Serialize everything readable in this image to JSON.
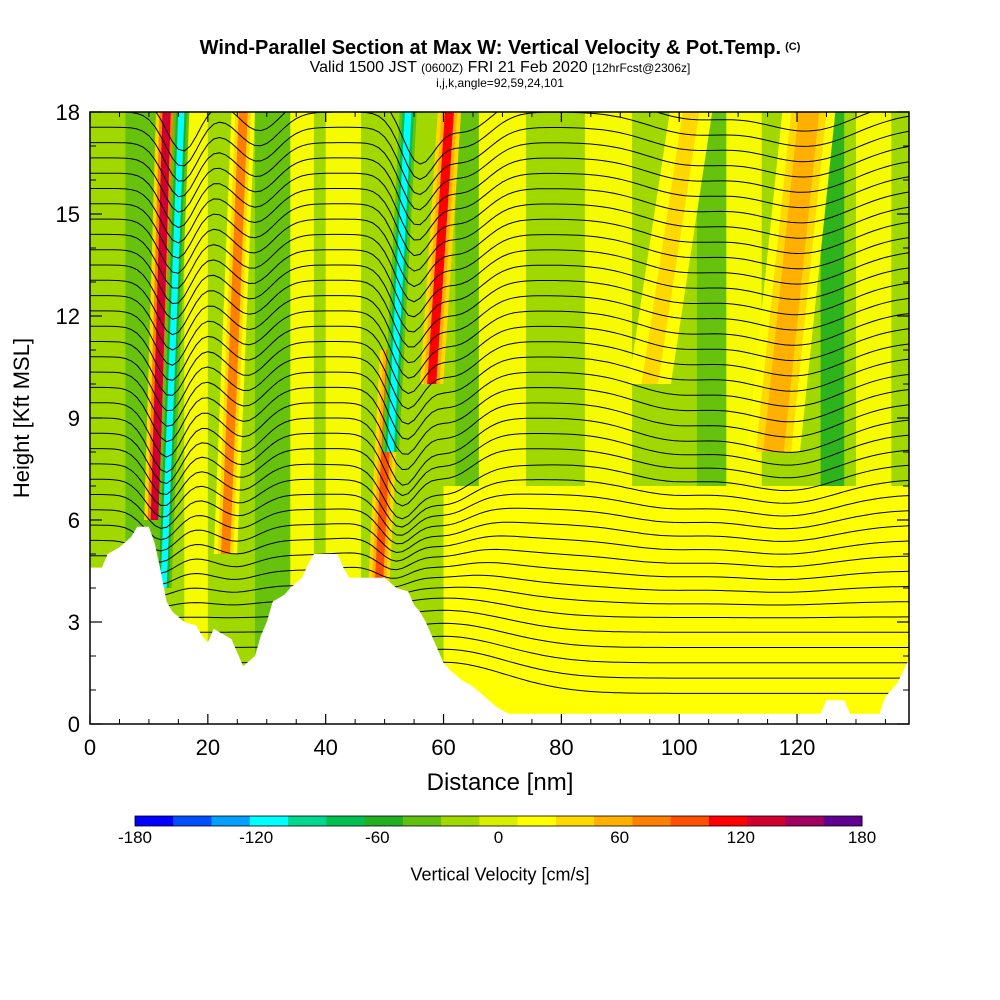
{
  "title": {
    "main": "Wind-Parallel Section at Max W: Vertical Velocity & Pot.Temp.",
    "copyright": "(C)",
    "valid_prefix": "Valid 1500 JST",
    "valid_utc": "(0600Z)",
    "valid_date": "FRI 21 Feb 2020",
    "forecast": "[12hrFcst@2306z]",
    "indices": "i,j,k,angle=92,59,24,101"
  },
  "chart_data": {
    "type": "heatmap",
    "xlabel": "Distance [nm]",
    "ylabel": "Height [Kft MSL]",
    "xlim": [
      0,
      139
    ],
    "ylim": [
      0,
      18
    ],
    "x_ticks": [
      "0",
      "20",
      "40",
      "60",
      "80",
      "100",
      "120"
    ],
    "y_ticks": [
      "0",
      "3",
      "6",
      "9",
      "12",
      "15",
      "18"
    ],
    "colorbar": {
      "label": "Vertical Velocity [cm/s]",
      "range": [
        -180,
        180
      ],
      "ticks": [
        "-180",
        "-120",
        "-60",
        "0",
        "60",
        "120",
        "180"
      ],
      "colors": [
        "#0000ff",
        "#0050ff",
        "#00a0ff",
        "#00ffff",
        "#00d890",
        "#00c050",
        "#20b020",
        "#60c010",
        "#a0d800",
        "#d8f000",
        "#ffff00",
        "#ffd800",
        "#ffb000",
        "#ff8000",
        "#ff5000",
        "#ff0000",
        "#d00030",
        "#a00060",
        "#600090"
      ]
    },
    "terrain_kft": [
      [
        0,
        4.6
      ],
      [
        2,
        4.6
      ],
      [
        3,
        5.0
      ],
      [
        5,
        5.2
      ],
      [
        7,
        5.5
      ],
      [
        8,
        5.8
      ],
      [
        10,
        5.8
      ],
      [
        11,
        5.3
      ],
      [
        12,
        4.5
      ],
      [
        13,
        3.6
      ],
      [
        14,
        3.3
      ],
      [
        16,
        3.0
      ],
      [
        18,
        2.9
      ],
      [
        19,
        2.6
      ],
      [
        20,
        2.4
      ],
      [
        21,
        2.8
      ],
      [
        22,
        2.7
      ],
      [
        24,
        2.5
      ],
      [
        25,
        2.1
      ],
      [
        26,
        1.7
      ],
      [
        28,
        2.0
      ],
      [
        29,
        2.6
      ],
      [
        30,
        3.0
      ],
      [
        31,
        3.6
      ],
      [
        33,
        3.8
      ],
      [
        34,
        4.0
      ],
      [
        36,
        4.3
      ],
      [
        37,
        4.7
      ],
      [
        38,
        5.0
      ],
      [
        40,
        5.0
      ],
      [
        42,
        5.0
      ],
      [
        43,
        4.6
      ],
      [
        44,
        4.3
      ],
      [
        47,
        4.3
      ],
      [
        50,
        4.3
      ],
      [
        52,
        4.0
      ],
      [
        54,
        3.9
      ],
      [
        55,
        3.5
      ],
      [
        56,
        3.3
      ],
      [
        57,
        3.0
      ],
      [
        58,
        2.6
      ],
      [
        59,
        2.2
      ],
      [
        60,
        1.8
      ],
      [
        61,
        1.6
      ],
      [
        63,
        1.3
      ],
      [
        65,
        1.1
      ],
      [
        67,
        0.8
      ],
      [
        69,
        0.5
      ],
      [
        71,
        0.3
      ],
      [
        80,
        0.3
      ],
      [
        100,
        0.3
      ],
      [
        124,
        0.3
      ],
      [
        125,
        0.7
      ],
      [
        128,
        0.7
      ],
      [
        129,
        0.3
      ],
      [
        130,
        0.3
      ],
      [
        134,
        0.3
      ],
      [
        135,
        0.8
      ],
      [
        137,
        1.2
      ],
      [
        139,
        1.9
      ]
    ],
    "updraft_bands": [
      {
        "x_base": 11,
        "x_top": 13,
        "w": 2.0,
        "h0": 6,
        "h1": 18,
        "v": 130
      },
      {
        "x_base": 12.5,
        "x_top": 15.5,
        "w": 1.5,
        "h0": 4,
        "h1": 18,
        "v": -110
      },
      {
        "x_base": 23,
        "x_top": 26,
        "w": 2.2,
        "h0": 5,
        "h1": 18,
        "v": 70
      },
      {
        "x_base": 49,
        "x_top": 51,
        "w": 2.0,
        "h0": 4,
        "h1": 11,
        "v": 90
      },
      {
        "x_base": 51,
        "x_top": 54,
        "w": 1.6,
        "h0": 8,
        "h1": 18,
        "v": -120
      },
      {
        "x_base": 58,
        "x_top": 61,
        "w": 2.2,
        "h0": 10,
        "h1": 18,
        "v": 110
      },
      {
        "x_base": 116,
        "x_top": 122,
        "w": 5.0,
        "h0": 8,
        "h1": 18,
        "v": 50
      },
      {
        "x_base": 95,
        "x_top": 102,
        "w": 4.0,
        "h0": 10,
        "h1": 18,
        "v": 40
      }
    ]
  }
}
